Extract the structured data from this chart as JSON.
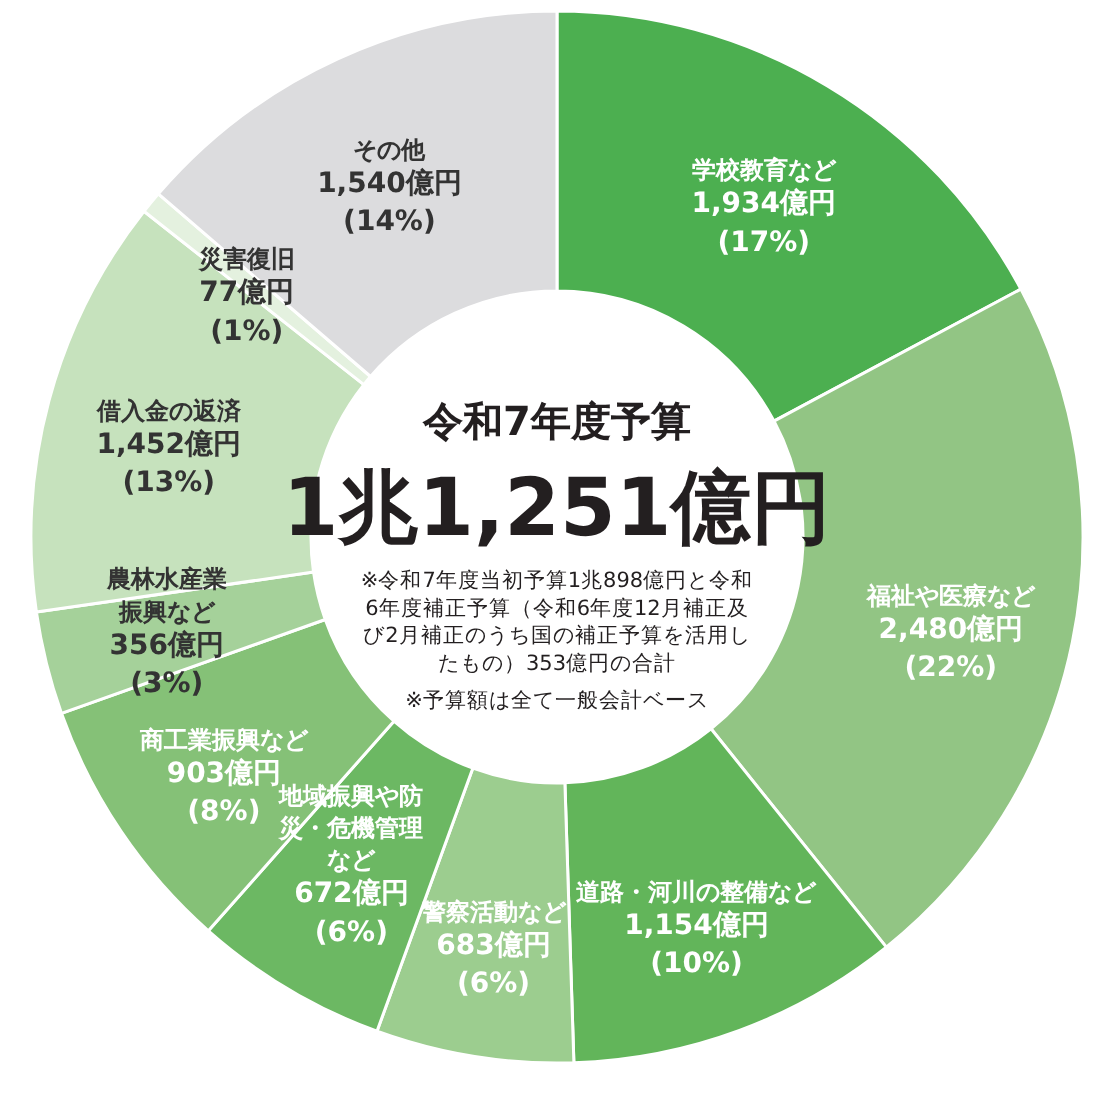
{
  "chart_data": {
    "type": "donut",
    "title": "令和7年度予算",
    "subtitle": "1兆1,251億円",
    "categories": [
      "学校教育など",
      "福祉や医療など",
      "道路・河川の整備など",
      "警察活動など",
      "地域振興や防災・危機管理など",
      "商工業振興など",
      "農林水産業振興など",
      "借入金の返済",
      "災害復旧",
      "その他"
    ],
    "values": [
      1934,
      2480,
      1154,
      683,
      672,
      903,
      356,
      1452,
      77,
      1540
    ],
    "colors": [
      "#4caf50",
      "#92c584",
      "#62b55a",
      "#9ccd8f",
      "#6cb863",
      "#85c177",
      "#a5d19a",
      "#c6e2bd",
      "#e4f1df",
      "#dcdcde"
    ],
    "value_labels": [
      "1,934億円\n(17%)",
      "2,480億円\n(22%)",
      "1,154億円\n(10%)",
      "683億円\n(6%)",
      "672億円\n(6%)",
      "903億円\n(8%)",
      "356億円\n(3%)",
      "1,452億円\n(13%)",
      "77億円\n(1%)",
      "1,540億円\n(14%)"
    ],
    "annotations": [
      "※令和7年度当初予算1兆898億円と令和6年度補正予算（令和6年度12月補正及び2月補正のうち国の補正予算を活用したもの）353億円の合計",
      "※予算額は全て一般会計ベース"
    ]
  }
}
